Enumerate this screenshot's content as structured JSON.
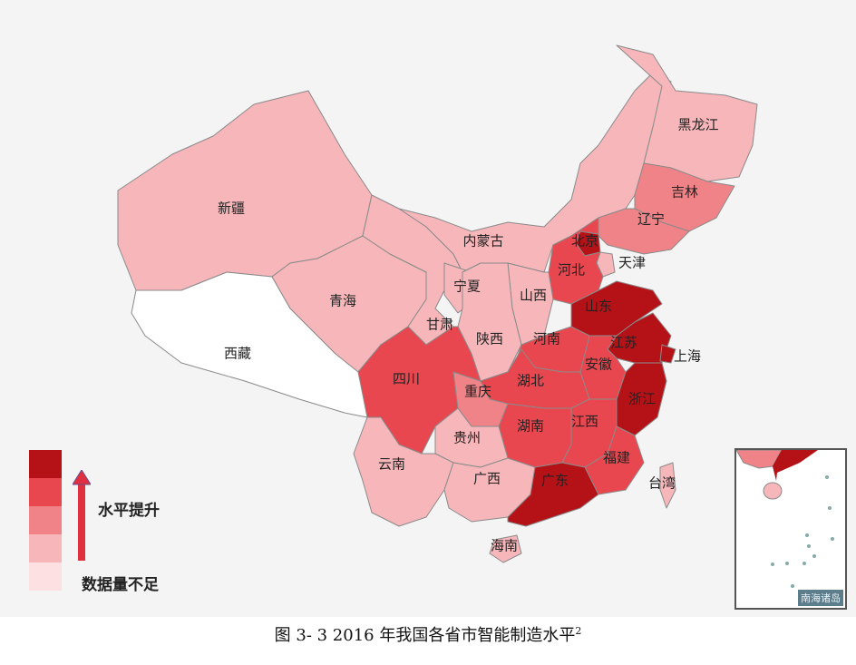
{
  "map": {
    "colors": {
      "0": "#ffffff",
      "1": "#f7b7ba",
      "2": "#f08387",
      "3": "#e8474f",
      "4": "#b51218"
    },
    "provinces": [
      {
        "name": "新疆",
        "level": 1
      },
      {
        "name": "西藏",
        "level": 0
      },
      {
        "name": "青海",
        "level": 1
      },
      {
        "name": "甘肃",
        "level": 1
      },
      {
        "name": "内蒙古",
        "level": 1
      },
      {
        "name": "黑龙江",
        "level": 1
      },
      {
        "name": "吉林",
        "level": 2
      },
      {
        "name": "辽宁",
        "level": 2
      },
      {
        "name": "北京",
        "level": 4
      },
      {
        "name": "天津",
        "level": 1
      },
      {
        "name": "河北",
        "level": 3
      },
      {
        "name": "山西",
        "level": 1
      },
      {
        "name": "宁夏",
        "level": 1
      },
      {
        "name": "陕西",
        "level": 1
      },
      {
        "name": "山东",
        "level": 4
      },
      {
        "name": "江苏",
        "level": 4
      },
      {
        "name": "上海",
        "level": 4
      },
      {
        "name": "安徽",
        "level": 3
      },
      {
        "name": "浙江",
        "level": 4
      },
      {
        "name": "河南",
        "level": 3
      },
      {
        "name": "湖北",
        "level": 3
      },
      {
        "name": "重庆",
        "level": 2
      },
      {
        "name": "四川",
        "level": 3
      },
      {
        "name": "湖南",
        "level": 3
      },
      {
        "name": "江西",
        "level": 3
      },
      {
        "name": "福建",
        "level": 3
      },
      {
        "name": "贵州",
        "level": 1
      },
      {
        "name": "云南",
        "level": 1
      },
      {
        "name": "广西",
        "level": 1
      },
      {
        "name": "广东",
        "level": 4
      },
      {
        "name": "海南",
        "level": 1
      },
      {
        "name": "台湾",
        "level": 1
      }
    ]
  },
  "legend": {
    "levels": [
      "#b51218",
      "#e8474f",
      "#f08387",
      "#f7b7ba",
      "#fde0e2"
    ],
    "arrow_label": "水平提升",
    "insufficient_label": "数据量不足"
  },
  "inset": {
    "label": "南海诸岛"
  },
  "caption": {
    "text": "图 3- 3    2016 年我国各省市智能制造水平",
    "superscript": "2"
  }
}
